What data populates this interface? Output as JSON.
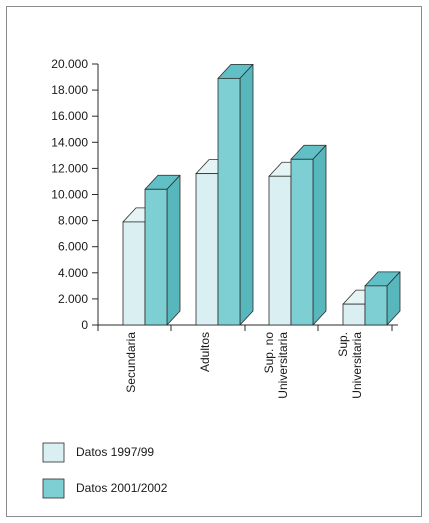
{
  "chart_data": {
    "type": "bar",
    "style": "3d-clustered-bar",
    "categories": [
      [
        "Secundaria"
      ],
      [
        "Adultos"
      ],
      [
        "Sup. no",
        "Universitaria"
      ],
      [
        "Sup.",
        "Universitaria"
      ]
    ],
    "y_ticks": [
      "0",
      "2.000",
      "4.000",
      "6.000",
      "8.000",
      "10.000",
      "12.000",
      "14.000",
      "16.000",
      "18.000",
      "20.000"
    ],
    "ylim": [
      0,
      20000
    ],
    "series": [
      {
        "name": "Datos 1997/99",
        "values": [
          7900,
          11600,
          11400,
          1600
        ]
      },
      {
        "name": "Datos 2001/2002",
        "values": [
          10400,
          18900,
          12700,
          3000
        ]
      }
    ],
    "colors": {
      "series0_front": "#d9eff1",
      "series0_side": "#c5e2e5",
      "series0_top": "#e6f4f5",
      "series1_front": "#7ecfd3",
      "series1_side": "#58b7bd",
      "series1_top": "#60c0c6",
      "outline": "#2b2b2b"
    },
    "legend_position": "bottom-left",
    "grid": false
  }
}
